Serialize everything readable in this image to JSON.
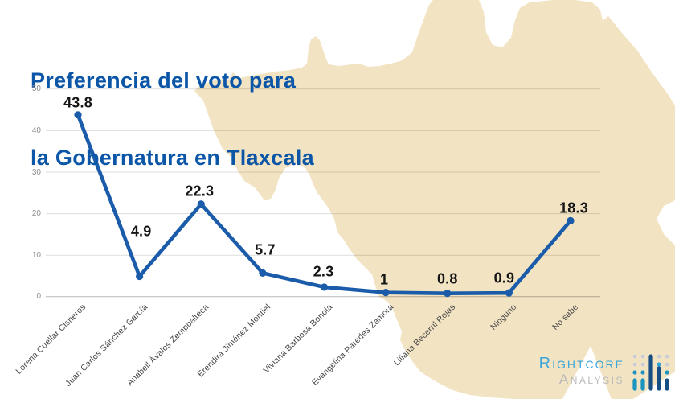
{
  "title": {
    "line1": "Preferencia del voto para",
    "line2": "la Gobernatura en Tlaxcala"
  },
  "chart_data": {
    "type": "line",
    "title": "Preferencia del voto para la Gobernatura en Tlaxcala",
    "categories": [
      "Lorena Cuellar Cisneros",
      "Juan Carlos Sánchez García",
      "Anabell Ávalos Zempoalteca",
      "Erendira Jiménez Montiel",
      "Viviana Barbosa Bonola",
      "Evangelina Paredes Zamora",
      "Liliana Becerril Rojas",
      "Ninguno",
      "No sabe"
    ],
    "values": [
      43.8,
      4.9,
      22.3,
      5.7,
      2.3,
      1,
      0.8,
      0.9,
      18.3
    ],
    "data_labels": [
      "43.8",
      "4.9",
      "22.3",
      "5.7",
      "2.3",
      "1",
      "0.8",
      "0.9",
      "18.3"
    ],
    "yticks": [
      0,
      10,
      20,
      30,
      40,
      50
    ],
    "ylim": [
      0,
      50
    ],
    "grid": true,
    "legend": false,
    "line_color": "#1a5ca9",
    "marker": "circle",
    "background_map": "Tlaxcala state silhouette"
  },
  "logo": {
    "name": "Rightcore Analysis",
    "line1": "Rightcore",
    "line2": "Analysis",
    "icon": "dot-matrix-chart-icon",
    "color_primary": "#3aa6dc",
    "color_secondary": "#b7b8bc"
  },
  "colors": {
    "title": "#0c56a7",
    "map_fill": "#f2e3c2",
    "data_label": "#161616",
    "axis_text": "#8e8e8e",
    "category_text": "#474747",
    "gridline": "rgba(0,0,0,0.13)",
    "axis_line": "rgba(0,0,0,0.28)"
  }
}
